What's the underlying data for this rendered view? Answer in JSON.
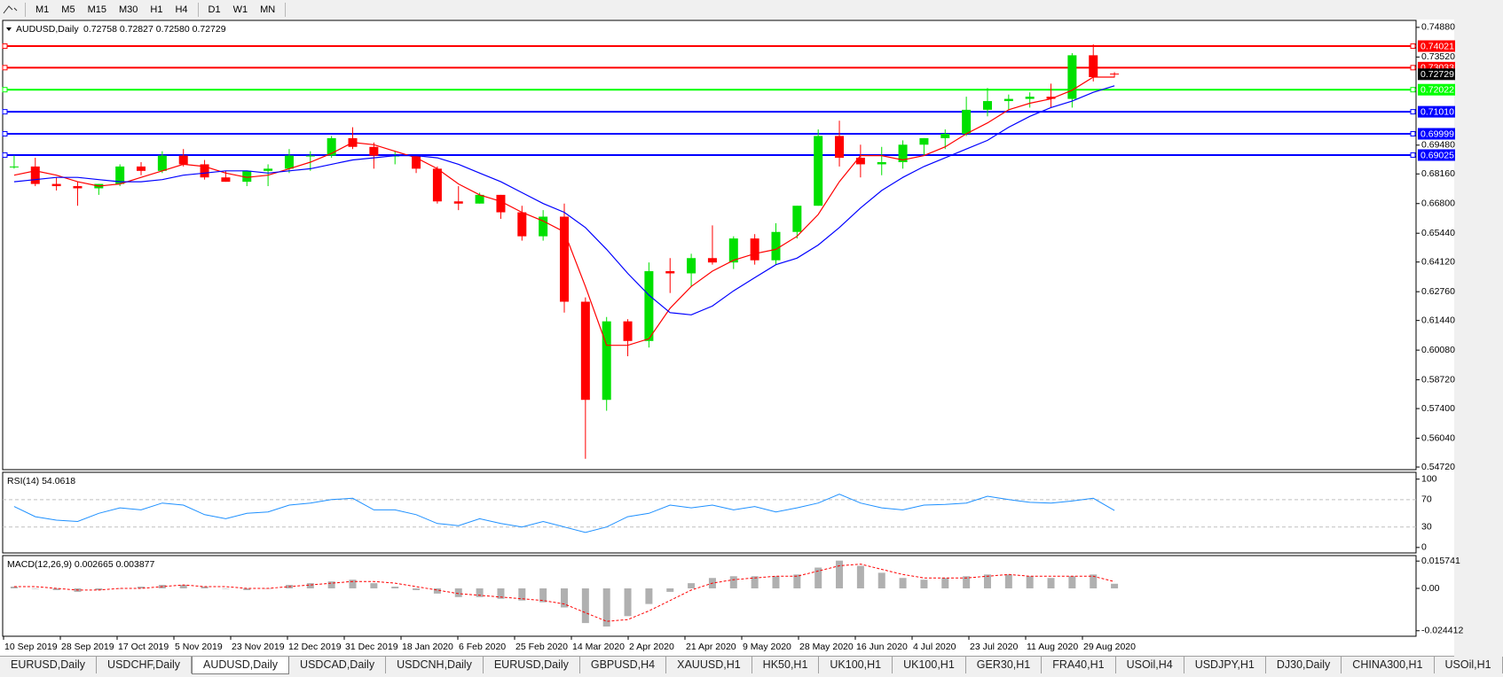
{
  "toolbar": [
    "M1",
    "M5",
    "M15",
    "M30",
    "H1",
    "H4",
    "D1",
    "W1",
    "MN"
  ],
  "chart_data": [
    {
      "type": "candlestick",
      "title": "AUDUSD,Daily",
      "subtitle": "0.72758 0.72827 0.72580 0.72729",
      "up_color": "#00e000",
      "down_color": "#ff0000",
      "ohlc": [
        [
          0.685,
          0.69,
          0.684,
          0.685
        ],
        [
          0.685,
          0.689,
          0.676,
          0.677
        ],
        [
          0.677,
          0.68,
          0.674,
          0.676
        ],
        [
          0.676,
          0.678,
          0.667,
          0.675
        ],
        [
          0.675,
          0.677,
          0.672,
          0.677
        ],
        [
          0.677,
          0.686,
          0.676,
          0.685
        ],
        [
          0.685,
          0.687,
          0.681,
          0.683
        ],
        [
          0.683,
          0.692,
          0.682,
          0.69
        ],
        [
          0.69,
          0.693,
          0.685,
          0.686
        ],
        [
          0.686,
          0.688,
          0.679,
          0.68
        ],
        [
          0.68,
          0.683,
          0.678,
          0.678
        ],
        [
          0.678,
          0.683,
          0.676,
          0.683
        ],
        [
          0.683,
          0.686,
          0.676,
          0.684
        ],
        [
          0.684,
          0.693,
          0.682,
          0.69
        ],
        [
          0.69,
          0.692,
          0.683,
          0.69
        ],
        [
          0.69,
          0.699,
          0.689,
          0.698
        ],
        [
          0.698,
          0.703,
          0.693,
          0.694
        ],
        [
          0.694,
          0.696,
          0.684,
          0.69
        ],
        [
          0.69,
          0.692,
          0.686,
          0.69
        ],
        [
          0.69,
          0.69,
          0.682,
          0.684
        ],
        [
          0.684,
          0.685,
          0.668,
          0.669
        ],
        [
          0.669,
          0.676,
          0.665,
          0.668
        ],
        [
          0.668,
          0.673,
          0.668,
          0.672
        ],
        [
          0.672,
          0.672,
          0.661,
          0.664
        ],
        [
          0.664,
          0.667,
          0.651,
          0.653
        ],
        [
          0.653,
          0.665,
          0.651,
          0.662
        ],
        [
          0.662,
          0.668,
          0.618,
          0.623
        ],
        [
          0.623,
          0.625,
          0.551,
          0.578
        ],
        [
          0.578,
          0.616,
          0.573,
          0.614
        ],
        [
          0.614,
          0.615,
          0.598,
          0.605
        ],
        [
          0.605,
          0.641,
          0.602,
          0.637
        ],
        [
          0.637,
          0.643,
          0.627,
          0.636
        ],
        [
          0.636,
          0.645,
          0.63,
          0.643
        ],
        [
          0.643,
          0.658,
          0.64,
          0.641
        ],
        [
          0.641,
          0.653,
          0.638,
          0.652
        ],
        [
          0.652,
          0.654,
          0.64,
          0.642
        ],
        [
          0.642,
          0.659,
          0.64,
          0.655
        ],
        [
          0.655,
          0.667,
          0.652,
          0.667
        ],
        [
          0.667,
          0.702,
          0.667,
          0.699
        ],
        [
          0.699,
          0.706,
          0.685,
          0.689
        ],
        [
          0.689,
          0.695,
          0.68,
          0.686
        ],
        [
          0.686,
          0.694,
          0.681,
          0.687
        ],
        [
          0.687,
          0.697,
          0.684,
          0.695
        ],
        [
          0.695,
          0.698,
          0.69,
          0.698
        ],
        [
          0.698,
          0.702,
          0.693,
          0.7
        ],
        [
          0.7,
          0.717,
          0.699,
          0.711
        ],
        [
          0.711,
          0.721,
          0.708,
          0.715
        ],
        [
          0.715,
          0.718,
          0.711,
          0.716
        ],
        [
          0.716,
          0.719,
          0.712,
          0.717
        ],
        [
          0.717,
          0.723,
          0.712,
          0.716
        ],
        [
          0.716,
          0.737,
          0.712,
          0.736
        ],
        [
          0.736,
          0.741,
          0.724,
          0.726
        ],
        [
          0.72758,
          0.72827,
          0.7258,
          0.72729
        ]
      ],
      "series": [
        {
          "color": "#ff0000",
          "values": [
            0.681,
            0.683,
            0.681,
            0.678,
            0.676,
            0.677,
            0.68,
            0.683,
            0.686,
            0.685,
            0.682,
            0.68,
            0.681,
            0.684,
            0.687,
            0.691,
            0.696,
            0.695,
            0.692,
            0.689,
            0.684,
            0.677,
            0.672,
            0.669,
            0.664,
            0.66,
            0.655,
            0.63,
            0.603,
            0.603,
            0.606,
            0.62,
            0.63,
            0.637,
            0.642,
            0.645,
            0.647,
            0.653,
            0.663,
            0.678,
            0.69,
            0.69,
            0.688,
            0.69,
            0.694,
            0.7,
            0.705,
            0.711,
            0.714,
            0.716,
            0.72,
            0.726,
            0.726
          ]
        },
        {
          "color": "#0000ff",
          "values": [
            0.678,
            0.679,
            0.68,
            0.68,
            0.679,
            0.678,
            0.678,
            0.679,
            0.681,
            0.682,
            0.683,
            0.683,
            0.682,
            0.683,
            0.684,
            0.686,
            0.688,
            0.689,
            0.69,
            0.69,
            0.689,
            0.686,
            0.682,
            0.678,
            0.673,
            0.668,
            0.664,
            0.657,
            0.647,
            0.636,
            0.626,
            0.618,
            0.617,
            0.621,
            0.628,
            0.634,
            0.64,
            0.643,
            0.649,
            0.657,
            0.666,
            0.674,
            0.68,
            0.685,
            0.689,
            0.693,
            0.697,
            0.703,
            0.708,
            0.712,
            0.715,
            0.719,
            0.722
          ]
        }
      ],
      "levels": [
        {
          "value": 0.74021,
          "color": "#ff0000",
          "style": "solid"
        },
        {
          "value": 0.73033,
          "color": "#ff0000",
          "style": "solid"
        },
        {
          "value": 0.72022,
          "color": "#00ff00",
          "style": "solid"
        },
        {
          "value": 0.7101,
          "label": "0.71010",
          "color": "#0000ff",
          "style": "solid"
        },
        {
          "value": 0.69999,
          "color": "#0000ff",
          "style": "solid"
        },
        {
          "value": 0.69025,
          "color": "#0000ff",
          "style": "solid"
        }
      ],
      "last_price": 0.72729,
      "ylim": [
        0.546,
        0.752
      ],
      "yticks": [
        {
          "value": 0.7488,
          "label": "0.74880"
        },
        {
          "value": 0.7352,
          "label": "0.73520"
        },
        {
          "value": 0.6948,
          "label": "0.69480"
        },
        {
          "value": 0.6816,
          "label": "0.68160"
        },
        {
          "value": 0.668,
          "label": "0.66800"
        },
        {
          "value": 0.6544,
          "label": "0.65440"
        },
        {
          "value": 0.6412,
          "label": "0.64120"
        },
        {
          "value": 0.6276,
          "label": "0.62760"
        },
        {
          "value": 0.6144,
          "label": "0.61440"
        },
        {
          "value": 0.6008,
          "label": "0.60080"
        },
        {
          "value": 0.5872,
          "label": "0.58720"
        },
        {
          "value": 0.574,
          "label": "0.57400"
        },
        {
          "value": 0.5604,
          "label": "0.56040"
        },
        {
          "value": 0.5472,
          "label": "0.54720"
        }
      ]
    },
    {
      "type": "line",
      "title": "RSI(14) 54.0618",
      "series": [
        {
          "color": "#1e90ff",
          "values": [
            60,
            45,
            40,
            38,
            50,
            58,
            55,
            65,
            62,
            48,
            42,
            50,
            52,
            62,
            65,
            70,
            72,
            55,
            55,
            48,
            35,
            32,
            42,
            35,
            30,
            38,
            30,
            22,
            30,
            45,
            50,
            62,
            58,
            62,
            55,
            60,
            52,
            58,
            65,
            78,
            65,
            58,
            55,
            62,
            63,
            65,
            75,
            70,
            66,
            65,
            68,
            72,
            54.0618
          ]
        }
      ],
      "levels": [
        {
          "value": 70,
          "color": "#c0c0c0",
          "style": "dashed"
        },
        {
          "value": 30,
          "color": "#c0c0c0",
          "style": "dashed"
        }
      ],
      "ylim": [
        -8,
        110
      ],
      "yticks": [
        100,
        0
      ]
    },
    {
      "type": "macd",
      "title": "MACD(12,26,9) 0.002665 0.003877",
      "series": [
        {
          "color": "#b0b0b0",
          "style": "bar",
          "values": [
            0.001,
            0,
            -0.001,
            -0.002,
            -0.001,
            0,
            0.001,
            0.002,
            0.002,
            0.001,
            0,
            -0.001,
            0,
            0.002,
            0.003,
            0.004,
            0.005,
            0.003,
            0.001,
            -0.001,
            -0.003,
            -0.005,
            -0.005,
            -0.006,
            -0.007,
            -0.008,
            -0.011,
            -0.02,
            -0.022,
            -0.016,
            -0.009,
            -0.002,
            0.003,
            0.006,
            0.007,
            0.007,
            0.007,
            0.008,
            0.012,
            0.016,
            0.013,
            0.009,
            0.006,
            0.005,
            0.006,
            0.007,
            0.008,
            0.008,
            0.007,
            0.006,
            0.007,
            0.008,
            0.002665
          ]
        },
        {
          "color": "#ff0000",
          "style": "dashed",
          "values": [
            0.001,
            0.001,
            0,
            -0.001,
            -0.001,
            0,
            0,
            0.001,
            0.002,
            0.001,
            0.001,
            0,
            0,
            0.001,
            0.002,
            0.003,
            0.004,
            0.004,
            0.003,
            0.001,
            -0.001,
            -0.003,
            -0.004,
            -0.005,
            -0.006,
            -0.007,
            -0.009,
            -0.014,
            -0.019,
            -0.018,
            -0.013,
            -0.007,
            -0.001,
            0.003,
            0.005,
            0.006,
            0.007,
            0.007,
            0.01,
            0.013,
            0.014,
            0.011,
            0.008,
            0.006,
            0.006,
            0.006,
            0.007,
            0.008,
            0.007,
            0.007,
            0.007,
            0.007,
            0.003877
          ]
        }
      ],
      "ylim": [
        -0.0276,
        0.0189
      ],
      "yticks": [
        0.015741,
        {
          "value": 0,
          "label": "0.00"
        },
        -0.024412
      ],
      "x_labels": [
        "10 Sep 2019",
        "28 Sep 2019",
        "17 Oct 2019",
        "5 Nov 2019",
        "23 Nov 2019",
        "12 Dec 2019",
        "31 Dec 2019",
        "18 Jan 2020",
        "6 Feb 2020",
        "25 Feb 2020",
        "14 Mar 2020",
        "2 Apr 2020",
        "21 Apr 2020",
        "9 May 2020",
        "28 May 2020",
        "16 Jun 2020",
        "4 Jul 2020",
        "23 Jul 2020",
        "11 Aug 2020",
        "29 Aug 2020"
      ]
    }
  ],
  "tabs": {
    "active": 2,
    "items": [
      "EURUSD,Daily",
      "USDCHF,Daily",
      "AUDUSD,Daily",
      "USDCAD,Daily",
      "USDCNH,Daily",
      "EURUSD,Daily",
      "GBPUSD,H4",
      "XAUUSD,H1",
      "HK50,H1",
      "UK100,H1",
      "UK100,H1",
      "GER30,H1",
      "FRA40,H1",
      "USOil,H4",
      "USDJPY,H1",
      "DJ30,Daily",
      "CHINA300,H1",
      "USOil,H1"
    ]
  }
}
